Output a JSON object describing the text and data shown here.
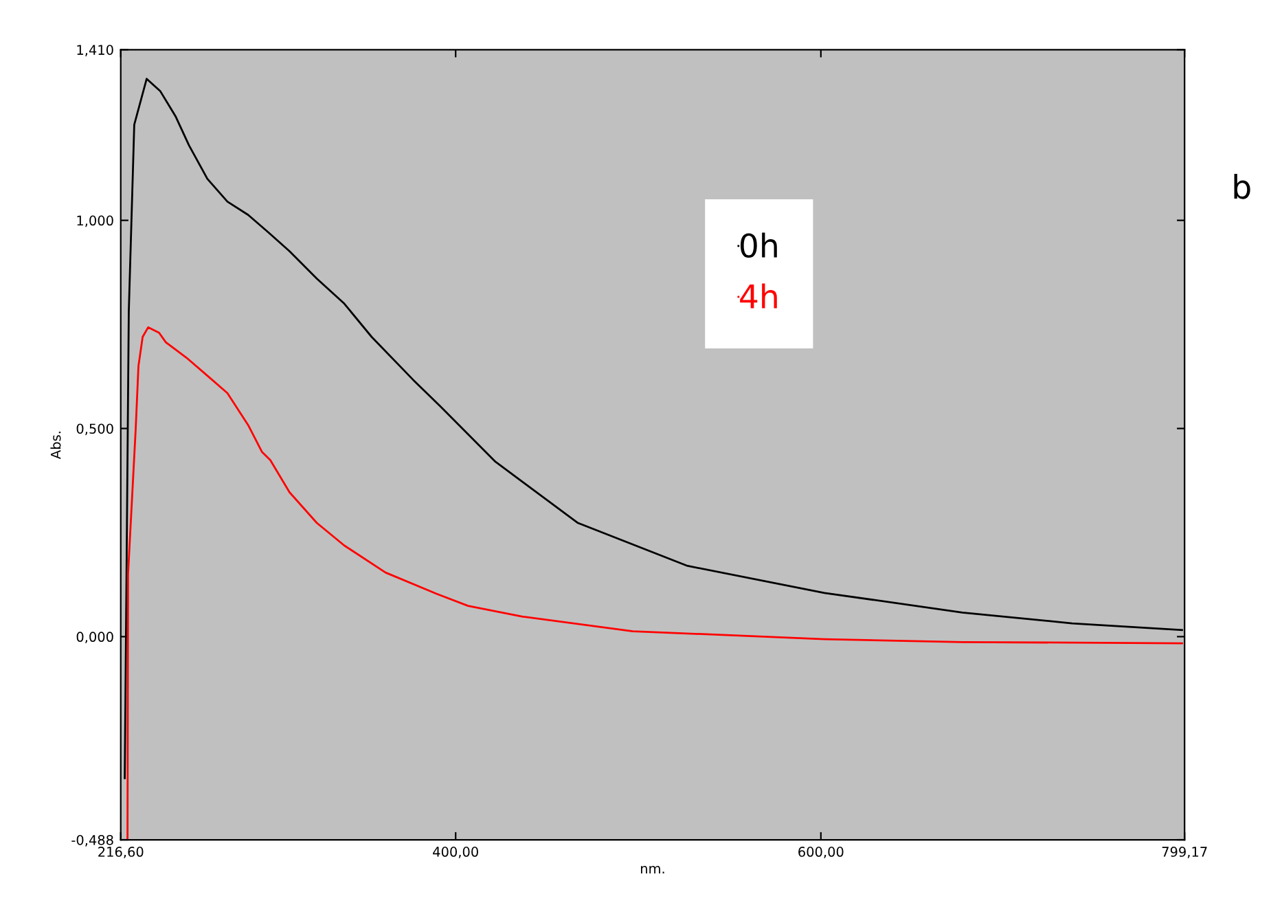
{
  "chart_data": {
    "type": "line",
    "xlabel": "nm.",
    "ylabel": "Abs.",
    "annotations": [
      "b"
    ],
    "series": [
      {
        "name": "0h",
        "color": "#000000",
        "x": [
          218.8,
          221,
          224,
          230.8,
          238.3,
          246.6,
          254,
          264,
          275,
          286.4,
          297.7,
          309,
          324,
          339,
          354,
          376.7,
          391.7,
          421.8,
          467,
          527,
          602,
          677.5,
          737.6,
          797.8
        ],
        "values": [
          -0.34,
          0.78,
          1.23,
          1.34,
          1.31,
          1.25,
          1.18,
          1.1,
          1.045,
          1.013,
          0.97,
          0.926,
          0.86,
          0.8,
          0.72,
          0.617,
          0.553,
          0.42,
          0.273,
          0.17,
          0.105,
          0.058,
          0.032,
          0.016
        ]
      },
      {
        "name": "4h",
        "color": "#ff0000",
        "x": [
          220.3,
          220.6,
          224.8,
          226.3,
          228.6,
          231.6,
          237.6,
          241.3,
          252.6,
          264,
          275,
          286.4,
          293.9,
          298.5,
          309,
          324,
          339,
          361.6,
          389.5,
          406.8,
          436.8,
          497,
          602,
          677.5,
          797.8
        ],
        "values": [
          -0.488,
          0.15,
          0.5,
          0.65,
          0.72,
          0.743,
          0.73,
          0.707,
          0.67,
          0.627,
          0.585,
          0.508,
          0.444,
          0.424,
          0.347,
          0.273,
          0.219,
          0.154,
          0.103,
          0.074,
          0.048,
          0.013,
          -0.006,
          -0.013,
          -0.016
        ]
      }
    ],
    "xlim": [
      216.6,
      799.17
    ],
    "xticks": [
      {
        "value": 216.6,
        "label": "216,60"
      },
      {
        "value": 400,
        "label": "400,00"
      },
      {
        "value": 600,
        "label": "600,00"
      },
      {
        "value": 799.17,
        "label": "799,17"
      }
    ],
    "ylim": [
      -0.488,
      1.41
    ],
    "yticks": [
      {
        "value": -0.488,
        "label": "-0,488"
      },
      {
        "value": 0,
        "label": "0,000"
      },
      {
        "value": 0.5,
        "label": "0,500"
      },
      {
        "value": 1,
        "label": "1,000"
      },
      {
        "value": 1.41,
        "label": "1,410"
      }
    ],
    "legend": "top",
    "grid": false
  }
}
